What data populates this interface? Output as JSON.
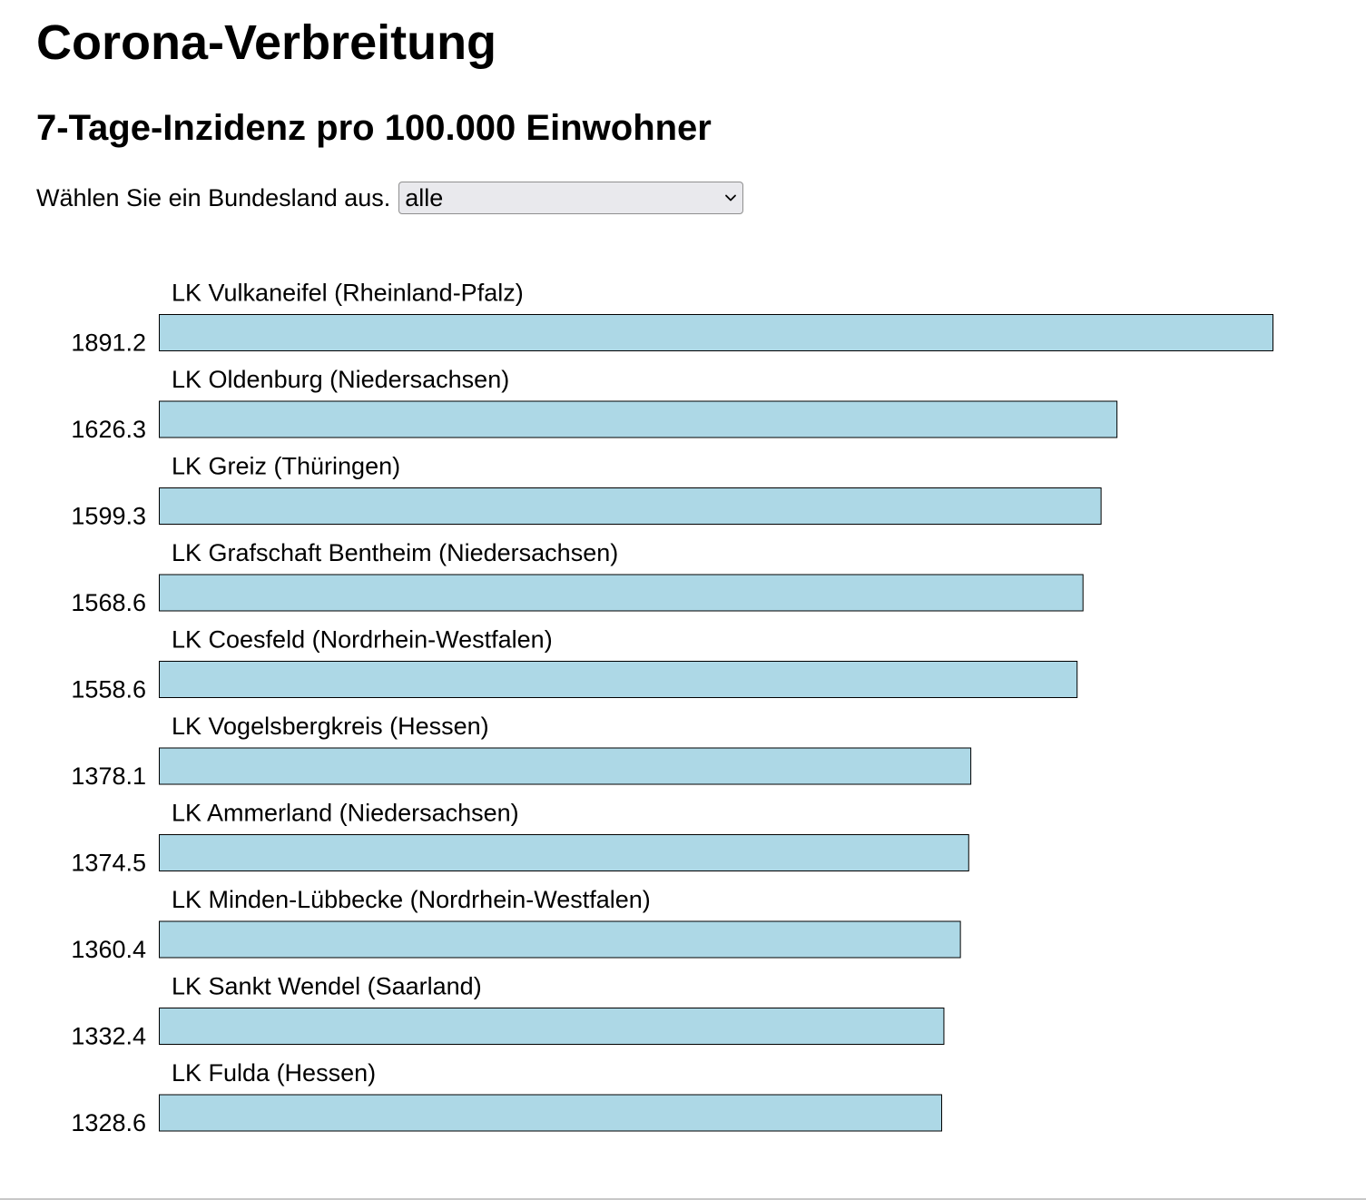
{
  "page": {
    "title": "Corona-Verbreitung",
    "subtitle": "7-Tage-Inzidenz pro 100.000 Einwohner"
  },
  "filter": {
    "label": "Wählen Sie ein Bundesland aus.",
    "selected": "alle"
  },
  "colors": {
    "bar_fill": "#add8e6",
    "bar_stroke": "#000000"
  },
  "chart_data": {
    "type": "bar",
    "orientation": "horizontal",
    "categories": [
      "LK Vulkaneifel (Rheinland-Pfalz)",
      "LK Oldenburg (Niedersachsen)",
      "LK Greiz (Thüringen)",
      "LK Grafschaft Bentheim (Niedersachsen)",
      "LK Coesfeld (Nordrhein-Westfalen)",
      "LK Vogelsbergkreis (Hessen)",
      "LK Ammerland (Niedersachsen)",
      "LK Minden-Lübbecke (Nordrhein-Westfalen)",
      "LK Sankt Wendel (Saarland)",
      "LK Fulda (Hessen)"
    ],
    "values": [
      1891.2,
      1626.3,
      1599.3,
      1568.6,
      1558.6,
      1378.1,
      1374.5,
      1360.4,
      1332.4,
      1328.6
    ],
    "value_labels": [
      "1891.2",
      "1626.3",
      "1599.3",
      "1568.6",
      "1558.6",
      "1378.1",
      "1374.5",
      "1360.4",
      "1332.4",
      "1328.6"
    ],
    "title": "",
    "xlabel": "",
    "ylabel": "",
    "xlim": [
      0,
      1891.2
    ],
    "grid": false,
    "legend": "none"
  }
}
